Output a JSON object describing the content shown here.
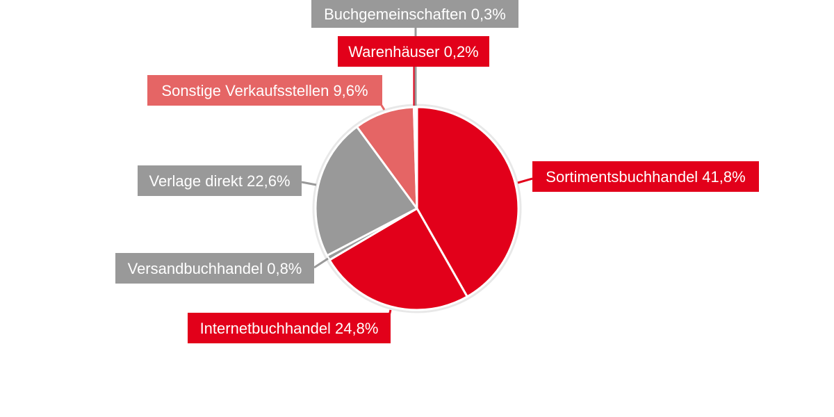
{
  "chart_data": {
    "type": "pie",
    "title": "",
    "start_angle_deg": 0,
    "direction": "clockwise",
    "slices": [
      {
        "label": "Sortimentsbuchhandel 41,8%",
        "value": 41.8,
        "color": "#e2001a"
      },
      {
        "label": "Internetbuchhandel 24,8%",
        "value": 24.8,
        "color": "#e2001a"
      },
      {
        "label": "Versandbuchhandel 0,8%",
        "value": 0.8,
        "color": "#999999"
      },
      {
        "label": "Verlage direkt 22,6%",
        "value": 22.6,
        "color": "#999999"
      },
      {
        "label": "Sonstige Verkaufsstellen 9,6%",
        "value": 9.6,
        "color": "#e56565"
      },
      {
        "label": "Warenhäuser 0,2%",
        "value": 0.2,
        "color": "#e2001a"
      },
      {
        "label": "Buchgemeinschaften 0,3%",
        "value": 0.3,
        "color": "#999999"
      }
    ]
  }
}
